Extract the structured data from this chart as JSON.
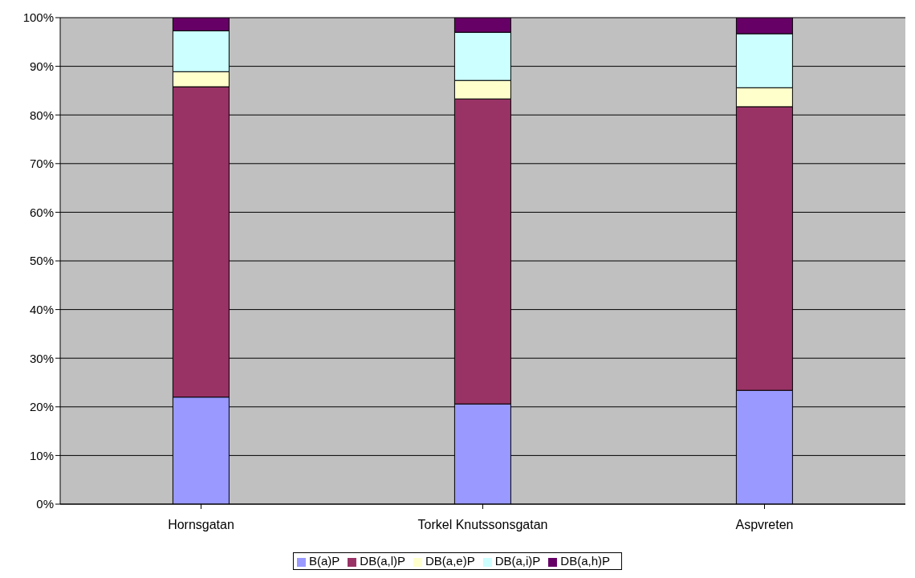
{
  "chart_data": {
    "type": "bar",
    "stacked": true,
    "categories": [
      "Hornsgatan",
      "Torkel Knutssonsgatan",
      "Aspvreten"
    ],
    "series": [
      {
        "name": "B(a)P",
        "color": "#9999ff",
        "values": [
          22.0,
          20.6,
          23.4
        ]
      },
      {
        "name": "DB(a,l)P",
        "color": "#993366",
        "values": [
          63.8,
          62.7,
          58.3
        ]
      },
      {
        "name": "DB(a,e)P",
        "color": "#ffffcc",
        "values": [
          3.1,
          3.8,
          3.9
        ]
      },
      {
        "name": "DB(a,i)P",
        "color": "#ccffff",
        "values": [
          8.4,
          9.9,
          11.1
        ]
      },
      {
        "name": "DB(a,h)P",
        "color": "#660066",
        "values": [
          2.7,
          3.0,
          3.3
        ]
      }
    ],
    "ylim": [
      0,
      100
    ],
    "yticks": [
      {
        "value": 0,
        "label": "0%"
      },
      {
        "value": 10,
        "label": "10%"
      },
      {
        "value": 20,
        "label": "20%"
      },
      {
        "value": 30,
        "label": "30%"
      },
      {
        "value": 40,
        "label": "40%"
      },
      {
        "value": 50,
        "label": "50%"
      },
      {
        "value": 60,
        "label": "60%"
      },
      {
        "value": 70,
        "label": "70%"
      },
      {
        "value": 80,
        "label": "80%"
      },
      {
        "value": 90,
        "label": "90%"
      },
      {
        "value": 100,
        "label": "100%"
      }
    ],
    "grid": "y",
    "legend": "bottom"
  }
}
